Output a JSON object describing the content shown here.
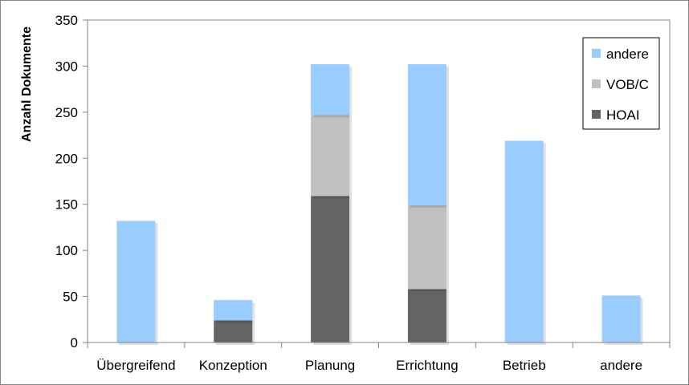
{
  "chart_data": {
    "type": "bar",
    "stacked": true,
    "title": "",
    "xlabel": "",
    "ylabel": "Anzahl Dokumente",
    "ylim": [
      0,
      350
    ],
    "yticks": [
      0,
      50,
      100,
      150,
      200,
      250,
      300,
      350
    ],
    "grid": false,
    "legend_position": "top-right",
    "categories": [
      "Übergreifend",
      "Konzeption",
      "Planung",
      "Errichtung",
      "Betrieb",
      "andere"
    ],
    "series": [
      {
        "name": "HOAI",
        "color": "#646464",
        "values": [
          0,
          24,
          159,
          58,
          0,
          0
        ]
      },
      {
        "name": "VOB/C",
        "color": "#c0c0c0",
        "values": [
          0,
          0,
          88,
          91,
          0,
          0
        ]
      },
      {
        "name": "andere",
        "color": "#99ccff",
        "values": [
          132,
          22,
          55,
          153,
          219,
          51
        ]
      }
    ]
  }
}
